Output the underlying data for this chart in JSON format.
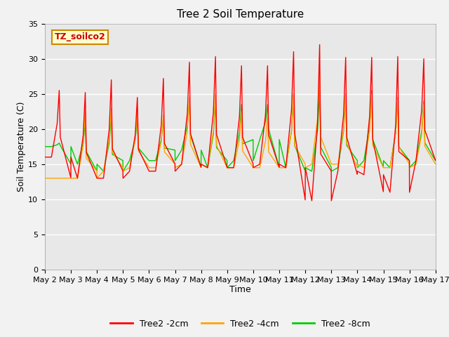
{
  "title": "Tree 2 Soil Temperature",
  "xlabel": "Time",
  "ylabel": "Soil Temperature (C)",
  "xlim_days": [
    2,
    17
  ],
  "ylim": [
    0,
    35
  ],
  "yticks": [
    0,
    5,
    10,
    15,
    20,
    25,
    30,
    35
  ],
  "xtick_labels": [
    "May 2",
    "May 3",
    "May 4",
    "May 5",
    "May 6",
    "May 7",
    "May 8",
    "May 9",
    "May 10",
    "May 11",
    "May 12",
    "May 13",
    "May 14",
    "May 15",
    "May 16",
    "May 17"
  ],
  "annotation_box": "TZ_soilco2",
  "legend_entries": [
    "Tree2 -2cm",
    "Tree2 -4cm",
    "Tree2 -8cm"
  ],
  "line_colors": [
    "#FF0000",
    "#FFA500",
    "#00CC00"
  ],
  "background_inner": "#E8E8E8",
  "background_outer": "#F2F2F2",
  "title_fontsize": 11,
  "label_fontsize": 9,
  "tick_fontsize": 8,
  "daily_cycles": {
    "days": [
      2,
      3,
      4,
      5,
      6,
      7,
      8,
      9,
      10,
      11,
      12,
      13,
      14,
      15,
      16
    ],
    "peaks_2cm": [
      25.5,
      25.2,
      27.0,
      24.5,
      27.2,
      29.5,
      30.3,
      29.0,
      29.0,
      31.0,
      32.0,
      30.2,
      30.2,
      30.3,
      30.0
    ],
    "troughs_2cm": [
      16.0,
      13.0,
      13.0,
      14.0,
      14.0,
      15.0,
      14.5,
      14.5,
      15.0,
      14.5,
      9.8,
      14.0,
      13.5,
      11.0,
      15.5
    ],
    "peaks_4cm": [
      13.0,
      22.5,
      23.0,
      22.5,
      22.0,
      24.5,
      25.0,
      22.5,
      22.0,
      25.0,
      28.0,
      25.0,
      25.0,
      24.5,
      23.5
    ],
    "troughs_4cm": [
      13.0,
      13.0,
      14.0,
      14.5,
      14.5,
      15.0,
      14.5,
      14.5,
      14.5,
      14.5,
      15.0,
      15.0,
      14.5,
      14.5,
      15.0
    ],
    "peaks_8cm": [
      18.0,
      21.0,
      22.0,
      21.5,
      21.5,
      24.0,
      24.0,
      23.5,
      23.5,
      25.0,
      25.5,
      25.0,
      25.5,
      24.5,
      24.0
    ],
    "troughs_8cm": [
      17.5,
      15.0,
      14.0,
      15.5,
      15.5,
      17.0,
      14.5,
      15.5,
      18.5,
      14.5,
      14.0,
      14.5,
      15.5,
      14.5,
      15.5
    ],
    "peak_time": 0.55,
    "trough_time": 0.25
  }
}
